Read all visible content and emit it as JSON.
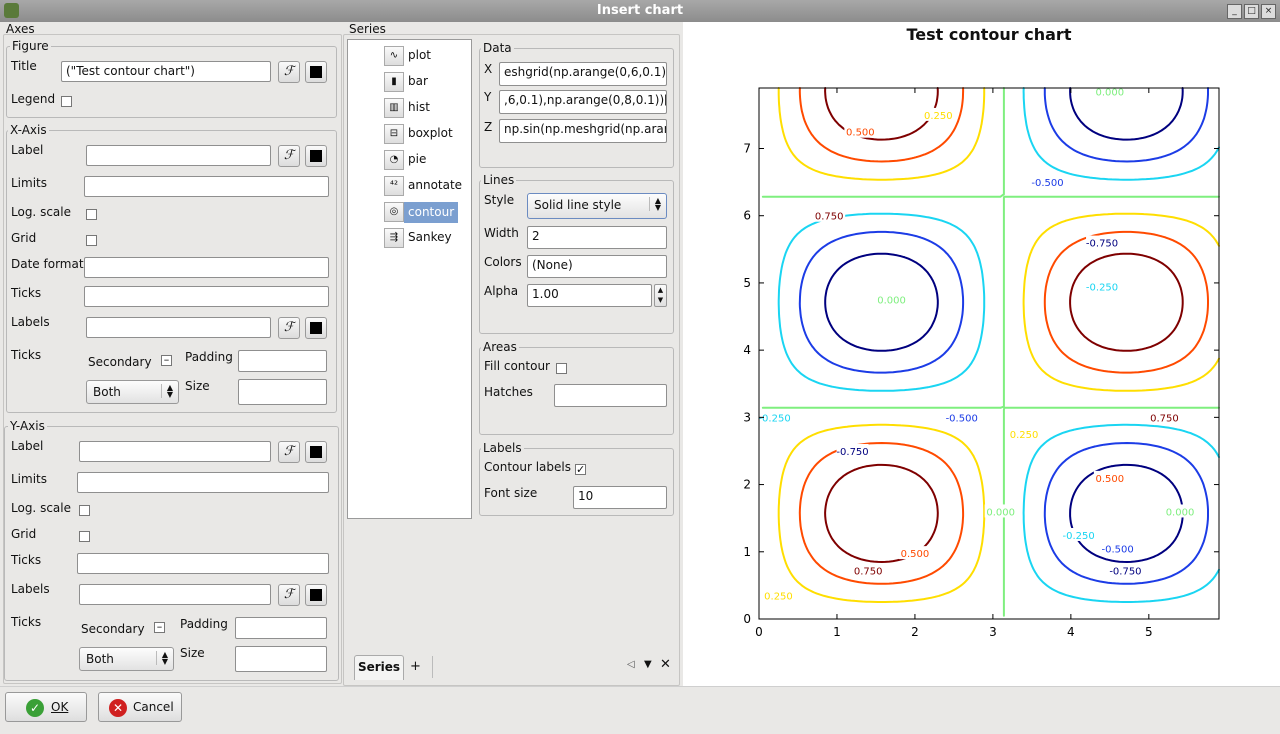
{
  "window": {
    "title": "Insert chart"
  },
  "axes": {
    "title": "Axes",
    "figure": {
      "title": "Figure",
      "title_label": "Title",
      "title_value": "(\"Test contour chart\")",
      "legend_label": "Legend"
    },
    "xaxis": {
      "title": "X-Axis",
      "label": "Label",
      "limits": "Limits",
      "log_scale": "Log. scale",
      "grid": "Grid",
      "date_format": "Date format",
      "ticks": "Ticks",
      "labels": "Labels",
      "ticks2": "Ticks",
      "secondary": "Secondary",
      "padding": "Padding",
      "size": "Size",
      "both": "Both"
    },
    "yaxis": {
      "title": "Y-Axis",
      "label": "Label",
      "limits": "Limits",
      "log_scale": "Log. scale",
      "grid": "Grid",
      "ticks": "Ticks",
      "labels": "Labels",
      "ticks2": "Ticks",
      "secondary": "Secondary",
      "padding": "Padding",
      "size": "Size",
      "both": "Both"
    },
    "script_icon": "ℱ"
  },
  "series": {
    "title": "Series",
    "items": [
      {
        "label": "plot",
        "icon": "plot-icon"
      },
      {
        "label": "bar",
        "icon": "bar-icon"
      },
      {
        "label": "hist",
        "icon": "hist-icon"
      },
      {
        "label": "boxplot",
        "icon": "boxplot-icon"
      },
      {
        "label": "pie",
        "icon": "pie-icon"
      },
      {
        "label": "annotate",
        "icon": "annotate-icon"
      },
      {
        "label": "contour",
        "icon": "contour-icon"
      },
      {
        "label": "Sankey",
        "icon": "sankey-icon"
      }
    ],
    "selected": "contour",
    "data": {
      "title": "Data",
      "x_label": "X",
      "x_value": "eshgrid(np.arange(0,6,0.1),np",
      "y_label": "Y",
      "y_value": ",6,0.1),np.arange(0,8,0.1))[1]",
      "z_label": "Z",
      "z_value": "np.sin(np.meshgrid(np.arang"
    },
    "lines": {
      "title": "Lines",
      "style_label": "Style",
      "style_value": "Solid line style",
      "width_label": "Width",
      "width_value": "2",
      "colors_label": "Colors",
      "colors_value": "(None)",
      "alpha_label": "Alpha",
      "alpha_value": "1.00"
    },
    "areas": {
      "title": "Areas",
      "fill_label": "Fill contour",
      "hatches_label": "Hatches"
    },
    "labels": {
      "title": "Labels",
      "contour_labels_label": "Contour labels",
      "font_size_label": "Font size",
      "font_size_value": "10"
    },
    "tab_label": "Series",
    "add_tab": "+"
  },
  "buttons": {
    "ok": "OK",
    "cancel": "Cancel"
  },
  "chart_data": {
    "type": "contour",
    "title": "Test contour chart",
    "x_ticks": [
      "0",
      "1",
      "2",
      "3",
      "4",
      "5"
    ],
    "y_ticks": [
      "0",
      "1",
      "2",
      "3",
      "4",
      "5",
      "6",
      "7"
    ],
    "xlim": [
      0,
      5.9
    ],
    "ylim": [
      0,
      7.9
    ],
    "function": "sin(x)*sin(y)",
    "levels": [
      -0.75,
      -0.5,
      -0.25,
      0,
      0.25,
      0.5,
      0.75
    ],
    "level_labels": [
      "-0.750",
      "-0.500",
      "-0.250",
      "0.000",
      "0.250",
      "0.500",
      "0.750"
    ],
    "level_colors": [
      "#00007f",
      "#1c3ce6",
      "#1ad5f2",
      "#7fef7f",
      "#ffde00",
      "#ff4a00",
      "#7f0000"
    ],
    "label_positions": [
      {
        "level": 0.25,
        "x": 2.3,
        "y": 7.5
      },
      {
        "level": 0.5,
        "x": 1.3,
        "y": 7.25
      },
      {
        "level": 0.75,
        "x": 0.9,
        "y": 6.0
      },
      {
        "level": 0,
        "x": 4.5,
        "y": 7.85
      },
      {
        "level": -0.5,
        "x": 3.7,
        "y": 6.5
      },
      {
        "level": -0.75,
        "x": 4.4,
        "y": 5.6
      },
      {
        "level": -0.25,
        "x": 4.4,
        "y": 4.95
      },
      {
        "level": 0,
        "x": 1.7,
        "y": 4.75
      },
      {
        "level": -0.25,
        "x": 0.2,
        "y": 3.0
      },
      {
        "level": -0.5,
        "x": 2.6,
        "y": 3.0
      },
      {
        "level": -0.75,
        "x": 1.2,
        "y": 2.5
      },
      {
        "level": 0.25,
        "x": 3.4,
        "y": 2.75
      },
      {
        "level": 0.75,
        "x": 5.2,
        "y": 3.0
      },
      {
        "level": 0.5,
        "x": 4.5,
        "y": 2.1
      },
      {
        "level": 0,
        "x": 3.1,
        "y": 1.6
      },
      {
        "level": 0,
        "x": 5.4,
        "y": 1.6
      },
      {
        "level": -0.25,
        "x": 4.1,
        "y": 1.25
      },
      {
        "level": -0.5,
        "x": 4.6,
        "y": 1.05
      },
      {
        "level": -0.75,
        "x": 4.7,
        "y": 0.72
      },
      {
        "level": 0.5,
        "x": 2.0,
        "y": 0.98
      },
      {
        "level": 0.75,
        "x": 1.4,
        "y": 0.72
      },
      {
        "level": 0.25,
        "x": 0.25,
        "y": 0.35
      }
    ]
  }
}
